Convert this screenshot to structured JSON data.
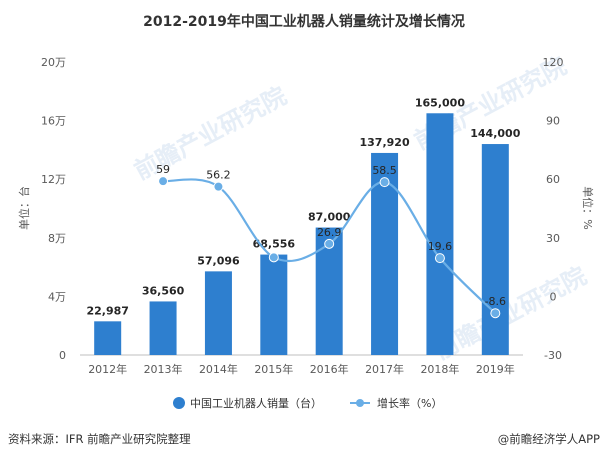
{
  "chart_data": {
    "type": "bar",
    "title": "2012-2019年中国工业机器人销量统计及增长情况",
    "categories": [
      "2012年",
      "2013年",
      "2014年",
      "2015年",
      "2016年",
      "2017年",
      "2018年",
      "2019年"
    ],
    "series": [
      {
        "name": "中国工业机器人销量（台）",
        "type": "bar",
        "axis": "left",
        "color": "#2e7fcf",
        "values": [
          22987,
          36560,
          57096,
          68556,
          87000,
          137920,
          165000,
          144000
        ],
        "labels": [
          "22,987",
          "36,560",
          "57,096",
          "68,556",
          "87,000",
          "137,920",
          "165,000",
          "144,000"
        ]
      },
      {
        "name": "增长率（%）",
        "type": "line",
        "axis": "right",
        "color": "#6aaee6",
        "values": [
          null,
          59,
          56.2,
          20,
          26.9,
          58.5,
          19.6,
          -8.6
        ],
        "labels": [
          "",
          "59",
          "56.2",
          "",
          "26.9",
          "58.5",
          "19.6",
          "-8.6"
        ]
      }
    ],
    "y_left": {
      "label": "单位：台",
      "ticks": [
        "0",
        "4万",
        "8万",
        "12万",
        "16万",
        "20万"
      ],
      "tick_values": [
        0,
        40000,
        80000,
        120000,
        160000,
        200000
      ],
      "range": [
        0,
        200000
      ]
    },
    "y_right": {
      "label": "单位：%",
      "ticks": [
        "-30",
        "0",
        "30",
        "60",
        "90",
        "120"
      ],
      "tick_values": [
        -30,
        0,
        30,
        60,
        90,
        120
      ],
      "range": [
        -30,
        120
      ]
    },
    "grid": false,
    "legend_position": "bottom"
  },
  "footer": {
    "source": "资料来源：IFR 前瞻产业研究院整理",
    "brand": "@前瞻经济学人APP"
  },
  "watermark": {
    "text": "前瞻产业研究院"
  }
}
